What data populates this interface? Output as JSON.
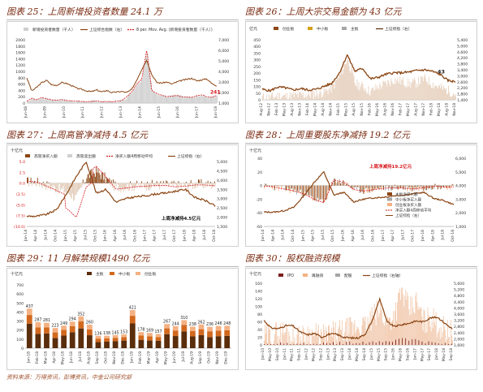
{
  "source_note": "资料来源：万得资讯，彭博资讯，中金公司研究部",
  "colors": {
    "brown": "#8b4513",
    "dark_brown": "#5a2d0c",
    "orange": "#d2691e",
    "peach": "#f4b183",
    "gray": "#a6a6a6",
    "red": "#d7191c",
    "light_gray": "#cfcfcf"
  },
  "chart_data": [
    {
      "id": "c25",
      "type": "line",
      "title": "图表 25：上周新增投资者数量 24.1 万",
      "legend": [
        "新增投资者数量（千人）",
        "上证综合指数（右）",
        "8 per. Mov. Avg. (新增投资者数量（千人）)"
      ],
      "x_ticks": [
        "Jun-08",
        "Jun-09",
        "Jun-10",
        "Jun-11",
        "Jun-12",
        "Jun-13",
        "Jun-14",
        "Jun-15",
        "Jun-16",
        "Jun-17",
        "Jun-18"
      ],
      "y_left": {
        "ticks": [
          "0",
          "200",
          "400",
          "600",
          "800",
          "1000",
          "1200",
          "1400",
          "1600",
          "1800",
          "2000"
        ],
        "range": [
          0,
          2000
        ]
      },
      "y_right": {
        "ticks": [
          "1,000",
          "2,000",
          "3,000",
          "4,000",
          "5,000",
          "6,000",
          "7,000"
        ],
        "range": [
          1000,
          7000
        ]
      },
      "annotation": "241",
      "index_close": [
        3400,
        2150,
        2500,
        2950,
        3150,
        2720,
        2680,
        2950,
        2850,
        2650,
        2400,
        2300,
        2150,
        2080,
        2250,
        2050,
        2200,
        2000,
        2050,
        2100,
        2000,
        2300,
        3200,
        4200,
        5100,
        3700,
        2950,
        2900,
        3000,
        2800,
        3000,
        3150,
        3250,
        3350,
        3100,
        3200,
        3300,
        2850,
        2650
      ],
      "new_investors": [
        60,
        150,
        100,
        180,
        130,
        100,
        90,
        110,
        80,
        70,
        60,
        50,
        40,
        50,
        70,
        40,
        50,
        40,
        60,
        80,
        200,
        350,
        600,
        750,
        1700,
        400,
        300,
        250,
        200,
        220,
        240,
        200,
        190,
        180,
        230,
        260,
        200,
        180,
        241
      ]
    },
    {
      "id": "c26",
      "type": "area",
      "title": "图表 26：上周大宗交易金额为 43 亿元",
      "unit": "亿元",
      "legend": [
        "创业板",
        "中小板",
        "主板",
        "上证综指（右）"
      ],
      "x_ticks": [
        "Aug-12",
        "Nov-12",
        "Feb-13",
        "May-13",
        "Aug-13",
        "Nov-13",
        "Feb-14",
        "May-14",
        "Aug-14",
        "Nov-14",
        "Feb-15",
        "May-15",
        "Aug-15",
        "Nov-15",
        "Feb-16",
        "May-16",
        "Aug-16",
        "Nov-16",
        "Feb-17",
        "May-17",
        "Aug-17",
        "Nov-17",
        "Feb-18",
        "May-18",
        "Aug-18",
        "Nov-18"
      ],
      "y_left": {
        "ticks": [
          "0",
          "50",
          "100",
          "150",
          "200",
          "250",
          "300",
          "350",
          "400",
          "450"
        ],
        "range": [
          0,
          450
        ]
      },
      "y_right": {
        "ticks": [
          "1,400",
          "1,800",
          "2,200",
          "2,600",
          "3,000",
          "3,400",
          "3,800",
          "4,200",
          "4,600",
          "5,000",
          "5,400"
        ],
        "range": [
          1400,
          5400
        ]
      },
      "annotation": "43",
      "index_close": [
        2100,
        2000,
        2250,
        2200,
        2050,
        2150,
        2050,
        2100,
        2300,
        2500,
        3200,
        4400,
        3300,
        3500,
        2800,
        2900,
        3100,
        3200,
        3200,
        3250,
        3350,
        3400,
        3300,
        3100,
        2700,
        2600
      ],
      "block_trade": [
        20,
        15,
        30,
        25,
        30,
        35,
        40,
        45,
        60,
        90,
        180,
        310,
        120,
        100,
        60,
        100,
        120,
        150,
        140,
        120,
        130,
        160,
        120,
        90,
        70,
        43
      ]
    },
    {
      "id": "c27",
      "type": "bar",
      "title": "图表 27：上周高管净减持 4.5 亿元",
      "unit": "十亿元",
      "legend": [
        "高管净买入额",
        "高管卖出额",
        "净买入额4周移动平均",
        "上证综指（右）"
      ],
      "x_ticks": [
        "Jan-14",
        "Apr-14",
        "Jul-14",
        "Oct-14",
        "Jan-15",
        "Apr-15",
        "Jul-15",
        "Oct-15",
        "Jan-16",
        "Apr-16",
        "Jul-16",
        "Oct-16",
        "Jan-17",
        "Apr-17",
        "Jul-17",
        "Oct-17",
        "Jan-18",
        "Apr-18",
        "Jul-18",
        "Oct-18"
      ],
      "y_left": {
        "ticks": [
          "5.0",
          "2.5",
          "0.0",
          "(2.5)",
          "(5.0)",
          "(7.5)",
          "(10.0)"
        ],
        "range": [
          -10,
          5
        ]
      },
      "y_right": {
        "ticks": [
          "1,500",
          "2,000",
          "2,500",
          "3,000",
          "3,500",
          "4,000",
          "4,500",
          "5,000"
        ],
        "range": [
          1500,
          5000
        ]
      },
      "annotation": "上周净减持4.5亿元",
      "index_close": [
        2050,
        2050,
        2150,
        2400,
        3250,
        4200,
        5000,
        3300,
        3500,
        2800,
        3000,
        3100,
        3150,
        3250,
        3300,
        3400,
        3500,
        3050,
        2900,
        2600
      ],
      "net_buy": [
        0.3,
        0.2,
        -0.5,
        -1.2,
        -2.0,
        -3.5,
        1.5,
        2.8,
        1.0,
        -1.0,
        -0.8,
        -0.6,
        -0.5,
        -0.4,
        -0.4,
        -0.6,
        -0.5,
        -0.3,
        -0.3,
        -0.45
      ]
    },
    {
      "id": "c28",
      "type": "bar",
      "title": "图表 28：上周重要股东净减持 19.2 亿元",
      "unit": "十亿元",
      "legend": [
        "主板净买入额",
        "中小板净买入额",
        "创业板净买入额",
        "净买入额4周移动平均",
        "上证综指（右）"
      ],
      "x_ticks": [
        "Jan-14",
        "Apr-14",
        "Jul-14",
        "Oct-14",
        "Jan-15",
        "Apr-15",
        "Jul-15",
        "Oct-15",
        "Jan-16",
        "Apr-16",
        "Jul-16",
        "Oct-16",
        "Jan-17",
        "Apr-17",
        "Jul-17",
        "Oct-17",
        "Jan-18",
        "Apr-18",
        "Jul-18",
        "Oct-18"
      ],
      "y_left": {
        "ticks": [
          "40",
          "20",
          "0",
          "-20",
          "-40",
          "-60"
        ],
        "range": [
          -60,
          40
        ]
      },
      "y_right": {
        "ticks": [
          "1,000",
          "2,000",
          "3,000",
          "4,000",
          "5,000",
          "6,000"
        ],
        "range": [
          1000,
          6000
        ]
      },
      "annotation": "上周净减持19.2亿元",
      "index_close": [
        2050,
        2050,
        2150,
        2400,
        3250,
        4200,
        5000,
        3300,
        3500,
        2800,
        3000,
        3100,
        3150,
        3250,
        3300,
        3400,
        3500,
        3050,
        2900,
        2600
      ],
      "net_buy": [
        -1,
        -2,
        -5,
        -8,
        -12,
        -20,
        -25,
        8,
        5,
        -6,
        -8,
        -6,
        -4,
        -3,
        -4,
        -5,
        -3,
        -1,
        -2,
        -1.92
      ]
    },
    {
      "id": "c29",
      "type": "bar",
      "title": "图表 29：11 月解禁规模1490 亿元",
      "unit": "十亿元",
      "legend": [
        "主板",
        "中小板",
        "创业板"
      ],
      "categories": [
        "Jan-18",
        "Feb-18",
        "Mar-18",
        "Apr-18",
        "May-18",
        "Jun-18",
        "Jul-18",
        "Aug-18",
        "Sep-18",
        "Oct-18",
        "Nov-18",
        "Dec-18",
        "Jan-19",
        "Feb-19",
        "Mar-19",
        "Apr-19",
        "May-19",
        "Jun-19",
        "Jul-19",
        "Aug-19",
        "Sep-19",
        "Oct-19",
        "Nov-19",
        "Dec-19"
      ],
      "y_left": {
        "ticks": [
          "0",
          "100",
          "200",
          "300",
          "400",
          "500",
          "600",
          "700"
        ],
        "range": [
          0,
          700
        ]
      },
      "totals": [
        437,
        287,
        281,
        223,
        249,
        294,
        352,
        260,
        136,
        138,
        145,
        153,
        421,
        178,
        169,
        157,
        267,
        244,
        310,
        238,
        262,
        236,
        246,
        248
      ],
      "mainboard_share": [
        0.62,
        0.55,
        0.58,
        0.5,
        0.56,
        0.6,
        0.62,
        0.55,
        0.5,
        0.52,
        0.53,
        0.55,
        0.65,
        0.52,
        0.5,
        0.52,
        0.58,
        0.55,
        0.6,
        0.55,
        0.55,
        0.52,
        0.54,
        0.55
      ],
      "sme_share": [
        0.22,
        0.25,
        0.24,
        0.28,
        0.25,
        0.23,
        0.22,
        0.25,
        0.28,
        0.27,
        0.26,
        0.25,
        0.2,
        0.27,
        0.28,
        0.26,
        0.24,
        0.25,
        0.23,
        0.25,
        0.25,
        0.27,
        0.25,
        0.25
      ]
    },
    {
      "id": "c30",
      "type": "bar",
      "title": "图表 30：股权融资规模",
      "unit": "十亿元",
      "legend": [
        "IPO",
        "再融资",
        "配股",
        "上证综指（右轴）"
      ],
      "x_ticks": [
        "Jan-10",
        "May-10",
        "Sep-10",
        "Jan-11",
        "May-11",
        "Sep-11",
        "Jan-12",
        "May-12",
        "Sep-12",
        "Jan-13",
        "May-13",
        "Sep-13",
        "Jan-14",
        "May-14",
        "Sep-14",
        "Jan-15",
        "May-15",
        "Sep-15",
        "Jan-16",
        "May-16",
        "Sep-16",
        "Jan-17",
        "May-17",
        "Sep-17",
        "Jan-18",
        "May-18",
        "Sep-18"
      ],
      "y_left": {
        "ticks": [
          "0",
          "20",
          "40",
          "60",
          "80",
          "100",
          "120",
          "140",
          "160"
        ],
        "range": [
          0,
          160
        ]
      },
      "y_right": {
        "ticks": [
          "1,600",
          "2,000",
          "2,400",
          "2,800",
          "3,200",
          "3,600",
          "4,000",
          "4,400",
          "4,800",
          "5,200",
          "5,600"
        ],
        "range": [
          1600,
          5600
        ]
      },
      "index_close": [
        3200,
        2700,
        2650,
        2850,
        2850,
        2450,
        2250,
        2350,
        2100,
        2300,
        2300,
        2100,
        2050,
        2050,
        2300,
        3200,
        4600,
        3100,
        2800,
        2900,
        3000,
        3150,
        3100,
        3350,
        3400,
        3000,
        2650
      ],
      "refinancing": [
        20,
        25,
        30,
        35,
        20,
        15,
        30,
        25,
        20,
        25,
        30,
        35,
        40,
        50,
        45,
        70,
        90,
        60,
        80,
        140,
        90,
        110,
        60,
        70,
        50,
        40,
        30
      ]
    }
  ]
}
